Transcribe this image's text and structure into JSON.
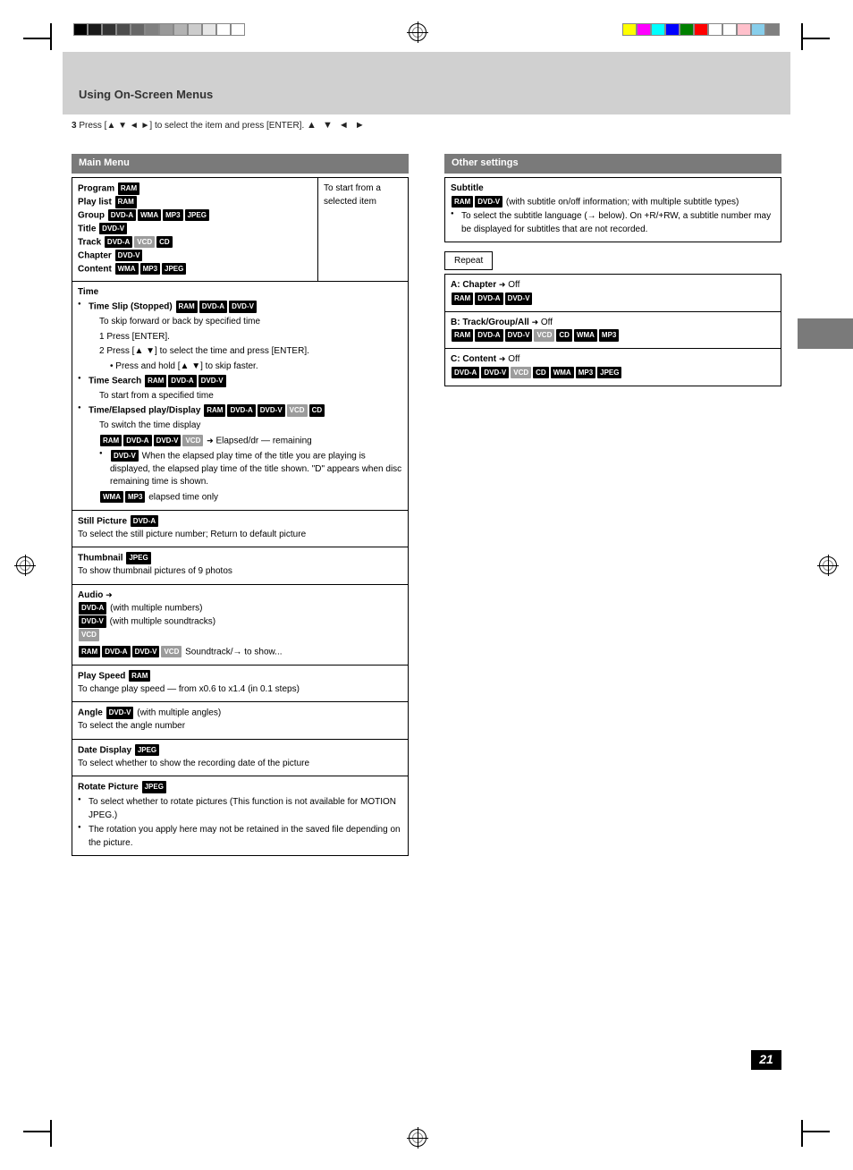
{
  "page_number": "21",
  "header": {
    "title": "Using On-Screen Menus",
    "step_text": "Press [▲ ▼ ◄ ►] to select the item and press [ENTER]."
  },
  "side_tab_label": "",
  "colorbars": {
    "grayscale": [
      "#000000",
      "#1a1a1a",
      "#333333",
      "#4d4d4d",
      "#666666",
      "#808080",
      "#999999",
      "#b3b3b3",
      "#cccccc",
      "#e6e6e6",
      "#ffffff",
      "#ffffff"
    ],
    "color": [
      "#ffff00",
      "#ff00ff",
      "#00ffff",
      "#0000ff",
      "#008000",
      "#ff0000",
      "#ffffff",
      "#ffffff",
      "#ffc0cb",
      "#87ceeb",
      "#808080"
    ]
  },
  "left_section": {
    "bar": "Main Menu",
    "row1": {
      "right_label": "To start from a selected item",
      "lines": [
        {
          "label": "Program",
          "badges": [
            "RAM"
          ]
        },
        {
          "label": "Play list",
          "badges": [
            "RAM"
          ]
        },
        {
          "label": "Group",
          "badges": [
            "DVD-A",
            "WMA",
            "MP3",
            "JPEG"
          ]
        },
        {
          "label": "Title",
          "badges": [
            "DVD-V"
          ]
        },
        {
          "label": "Track",
          "badges": [
            "DVD-A",
            "VCD",
            "CD"
          ],
          "light": [
            "VCD"
          ]
        },
        {
          "label": "Chapter",
          "badges": [
            "DVD-V"
          ]
        },
        {
          "label": "Content",
          "badges": [
            "WMA",
            "MP3",
            "JPEG"
          ]
        }
      ]
    },
    "row2": {
      "title": "Time",
      "items": [
        {
          "text": "Time Slip (Stopped)",
          "badges": [
            "RAM",
            "DVD-A",
            "DVD-V"
          ],
          "sub": "To skip forward or back by specified time",
          "sub2": "1  Press [ENTER].",
          "sub3": "2  Press [▲ ▼] to select the time and press [ENTER].",
          "note": "Press and hold [▲ ▼] to skip faster."
        },
        {
          "text": "Time Search",
          "badges": [
            "RAM",
            "DVD-A",
            "DVD-V"
          ],
          "sub": "To start from a specified time"
        },
        {
          "text": "Time/Elapsed play/Display",
          "badges": [
            "RAM",
            "DVD-A",
            "DVD-V",
            "VCD",
            "CD"
          ],
          "light": [
            "VCD"
          ],
          "sub": "To switch the time display",
          "sub2": "",
          "badges2": [
            "RAM",
            "DVD-A",
            "DVD-V",
            "VCD"
          ],
          "arrow": true,
          "suffix": "Elapsed/dr — remaining",
          "note2": "",
          "dvdv_note": "When the elapsed play time of the title you are playing is displayed, the elapsed play time of the title shown. \"D\" appears when disc remaining time is shown.",
          "wma_badges": [
            "WMA",
            "MP3"
          ],
          "wma_text": "elapsed time only"
        }
      ]
    },
    "row3": {
      "label": "Still Picture",
      "badges": [
        "DVD-A"
      ],
      "text": "To select the still picture number; Return to default picture"
    },
    "row4": {
      "label": "Thumbnail",
      "badges": [
        "JPEG"
      ],
      "text": "To show thumbnail pictures of 9 photos"
    },
    "row5": {
      "label": "Audio",
      "arrow": true,
      "lines": [
        {
          "badges": [
            "DVD-A"
          ],
          "text": "(with multiple numbers)"
        },
        {
          "badges": [
            "DVD-V"
          ],
          "text": "(with multiple soundtracks)"
        },
        {
          "badges": [
            "VCD"
          ],
          "light": [
            "VCD"
          ],
          "text": ""
        }
      ],
      "lang_line": {
        "badges": [
          "RAM",
          "DVD-A",
          "DVD-V",
          "VCD"
        ],
        "light": [
          "VCD"
        ],
        "text": "Soundtrack/→ to show..."
      }
    },
    "row6": {
      "label": "Play Speed",
      "badges": [
        "RAM"
      ],
      "text": "To change play speed — from x0.6 to x1.4 (in 0.1 steps)"
    },
    "row7": {
      "label": "Angle",
      "badges": [
        "DVD-V"
      ],
      "text": "(with multiple angles)",
      "sub": "To select the angle number"
    },
    "row8": {
      "label": "Date Display",
      "badges": [
        "JPEG"
      ],
      "text": "To select whether to show the recording date of the picture"
    },
    "row9": {
      "label": "Rotate Picture",
      "badges": [
        "JPEG"
      ],
      "bullets": [
        "To select whether to rotate pictures (This function is not available for MOTION JPEG.)",
        "The rotation you apply here may not be retained in the saved file depending on the picture."
      ]
    }
  },
  "right_section": {
    "bar": "Other settings",
    "box1": {
      "label": "Subtitle",
      "badges": [
        "RAM",
        "DVD-V"
      ],
      "text": "(with subtitle on/off information; with multiple subtitle types)",
      "bullet": "To select the subtitle language (→ below). On +R/+RW, a subtitle number may be displayed for subtitles that are not recorded."
    },
    "repeat_label": "Repeat",
    "repeat_rows": [
      {
        "label": "A: Chapter",
        "arrow": "→",
        "suffix": "Off",
        "badges": [
          "RAM",
          "DVD-A",
          "DVD-V"
        ]
      },
      {
        "label": "B: Track/Group/All",
        "arrow": "→",
        "suffix": "Off",
        "badges": [
          "RAM",
          "DVD-A",
          "DVD-V",
          "VCD",
          "CD",
          "WMA",
          "MP3"
        ],
        "light": [
          "VCD"
        ]
      },
      {
        "label": "C: Content",
        "arrow": "→",
        "suffix": "Off",
        "badges": [
          "DVD-A",
          "DVD-V",
          "VCD",
          "CD",
          "WMA",
          "MP3",
          "JPEG"
        ],
        "light": [
          "VCD"
        ]
      }
    ]
  }
}
